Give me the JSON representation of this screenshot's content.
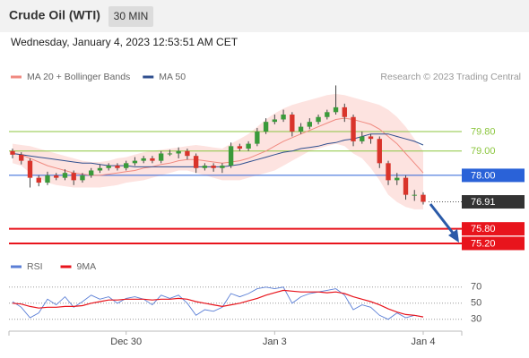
{
  "header": {
    "title": "Crude Oil (WTI)",
    "timeframe": "30 MIN",
    "date": "Wednesday, January 4, 2023 12:53:51 AM CET"
  },
  "chart_data": [
    {
      "type": "candlestick",
      "source": "Research © 2023 Trading Central",
      "categories": [
        null,
        null,
        null,
        null,
        null,
        null,
        null,
        null,
        null,
        null,
        null,
        null,
        null,
        "Dec 30",
        null,
        null,
        null,
        null,
        null,
        null,
        null,
        null,
        null,
        null,
        null,
        null,
        null,
        null,
        null,
        null,
        "Jan 3",
        null,
        null,
        null,
        null,
        null,
        null,
        null,
        null,
        null,
        null,
        null,
        null,
        null,
        null,
        null,
        null,
        "Jan 4"
      ],
      "open": [
        79.0,
        78.85,
        78.6,
        77.9,
        77.7,
        78.0,
        77.9,
        78.1,
        77.8,
        78.0,
        78.2,
        78.3,
        78.4,
        78.3,
        78.5,
        78.6,
        78.7,
        78.6,
        78.9,
        78.9,
        79.0,
        78.8,
        78.3,
        78.4,
        78.3,
        78.4,
        79.2,
        79.1,
        79.3,
        79.8,
        80.2,
        80.3,
        80.5,
        79.8,
        80.0,
        80.2,
        80.4,
        80.6,
        80.8,
        80.4,
        79.4,
        79.6,
        79.5,
        78.5,
        77.8,
        77.9,
        77.2,
        77.2
      ],
      "high": [
        79.1,
        78.95,
        78.7,
        78.0,
        78.15,
        78.1,
        78.25,
        78.2,
        78.1,
        78.3,
        78.45,
        78.5,
        78.5,
        78.6,
        78.75,
        78.8,
        78.8,
        79.0,
        79.05,
        79.15,
        79.1,
        78.9,
        78.5,
        78.5,
        78.5,
        79.35,
        79.3,
        79.4,
        79.95,
        80.35,
        80.5,
        80.7,
        80.6,
        80.15,
        80.35,
        80.5,
        80.7,
        81.7,
        80.95,
        80.5,
        79.8,
        79.7,
        79.6,
        78.6,
        78.1,
        78.0,
        77.4,
        77.3
      ],
      "low": [
        78.7,
        78.45,
        77.5,
        77.55,
        77.6,
        77.8,
        77.8,
        77.6,
        77.7,
        77.9,
        78.1,
        78.2,
        78.2,
        78.2,
        78.4,
        78.5,
        78.5,
        78.5,
        78.8,
        78.7,
        78.65,
        78.1,
        78.2,
        78.15,
        78.1,
        78.3,
        79.0,
        79.0,
        79.2,
        79.7,
        80.1,
        80.2,
        79.6,
        79.7,
        79.9,
        80.1,
        80.3,
        80.5,
        80.2,
        79.2,
        79.3,
        79.3,
        78.3,
        77.6,
        77.6,
        77.0,
        76.95,
        76.8
      ],
      "close": [
        78.85,
        78.6,
        77.9,
        77.7,
        78.0,
        77.9,
        78.1,
        77.8,
        78.0,
        78.2,
        78.3,
        78.4,
        78.3,
        78.5,
        78.6,
        78.7,
        78.6,
        78.9,
        78.9,
        79.0,
        78.8,
        78.3,
        78.4,
        78.3,
        78.4,
        79.2,
        79.1,
        79.3,
        79.8,
        80.2,
        80.3,
        80.5,
        79.8,
        80.0,
        80.2,
        80.4,
        80.6,
        80.8,
        80.4,
        79.4,
        79.6,
        79.5,
        78.5,
        77.8,
        77.9,
        77.2,
        77.2,
        76.91
      ],
      "up_color": "#3a9a3a",
      "down_color": "#d9342b",
      "series": [
        {
          "name": "MA 20 + Bollinger Bands",
          "color": "#f08a80",
          "band_color": "#fde3e0",
          "values": [
            78.9,
            78.85,
            78.7,
            78.55,
            78.4,
            78.3,
            78.2,
            78.1,
            78.05,
            78.0,
            78.0,
            78.05,
            78.1,
            78.15,
            78.2,
            78.3,
            78.35,
            78.45,
            78.5,
            78.6,
            78.65,
            78.65,
            78.6,
            78.55,
            78.5,
            78.55,
            78.6,
            78.7,
            78.85,
            79.0,
            79.2,
            79.4,
            79.55,
            79.7,
            79.85,
            80.0,
            80.15,
            80.3,
            80.35,
            80.3,
            80.2,
            80.1,
            79.9,
            79.6,
            79.3,
            78.9,
            78.5,
            78.1
          ],
          "upper": [
            79.3,
            79.25,
            79.2,
            79.1,
            79.0,
            78.9,
            78.8,
            78.7,
            78.6,
            78.55,
            78.55,
            78.6,
            78.7,
            78.75,
            78.85,
            78.95,
            79.0,
            79.05,
            79.1,
            79.15,
            79.2,
            79.25,
            79.2,
            79.15,
            79.1,
            79.3,
            79.5,
            79.7,
            80.0,
            80.3,
            80.55,
            80.75,
            80.9,
            81.0,
            81.1,
            81.2,
            81.3,
            81.35,
            81.3,
            81.2,
            81.1,
            81.0,
            80.9,
            80.7,
            80.4,
            80.0,
            79.5,
            79.0
          ],
          "lower": [
            78.5,
            78.4,
            78.1,
            77.9,
            77.7,
            77.6,
            77.55,
            77.5,
            77.5,
            77.5,
            77.5,
            77.55,
            77.6,
            77.7,
            77.75,
            77.8,
            77.9,
            78.0,
            78.1,
            78.2,
            78.2,
            78.1,
            78.0,
            77.9,
            77.8,
            77.8,
            77.8,
            77.9,
            78.0,
            78.1,
            78.2,
            78.4,
            78.6,
            78.8,
            79.0,
            79.1,
            79.2,
            79.3,
            79.2,
            78.9,
            78.7,
            78.3,
            77.8,
            77.2,
            76.9,
            76.7,
            76.6,
            76.6
          ]
        },
        {
          "name": "MA 50",
          "color": "#2f4f8f",
          "values": [
            78.9,
            78.85,
            78.8,
            78.75,
            78.7,
            78.65,
            78.6,
            78.55,
            78.5,
            78.5,
            78.45,
            78.4,
            78.4,
            78.4,
            78.35,
            78.35,
            78.35,
            78.35,
            78.35,
            78.35,
            78.35,
            78.35,
            78.35,
            78.35,
            78.35,
            78.4,
            78.45,
            78.55,
            78.65,
            78.75,
            78.85,
            78.95,
            79.0,
            79.1,
            79.15,
            79.2,
            79.3,
            79.35,
            79.45,
            79.5,
            79.6,
            79.7,
            79.7,
            79.7,
            79.6,
            79.5,
            79.4,
            79.25
          ]
        }
      ],
      "levels": [
        {
          "value": 79.8,
          "label": "79.80",
          "color": "#8cc63f",
          "boxed": false,
          "dotted": false
        },
        {
          "value": 79.0,
          "label": "79.00",
          "color": "#8cc63f",
          "boxed": false,
          "dotted": false
        },
        {
          "value": 78.0,
          "label": "78.00",
          "color": "#2a62d8",
          "boxed": true,
          "dotted": false
        },
        {
          "value": 76.91,
          "label": "76.91",
          "color": "#333333",
          "boxed": true,
          "dotted": true
        },
        {
          "value": 75.8,
          "label": "75.80",
          "color": "#e8141c",
          "boxed": true,
          "dotted": false
        },
        {
          "value": 75.2,
          "label": "75.20",
          "color": "#e8141c",
          "boxed": true,
          "dotted": false
        }
      ],
      "ylim": [
        74.72,
        81.9
      ]
    },
    {
      "type": "line",
      "series": [
        {
          "name": "RSI",
          "color": "#5b7fd6",
          "values": [
            52,
            45,
            32,
            38,
            55,
            48,
            58,
            45,
            52,
            60,
            55,
            58,
            50,
            56,
            58,
            55,
            48,
            60,
            56,
            60,
            50,
            35,
            42,
            40,
            45,
            62,
            58,
            62,
            68,
            70,
            68,
            70,
            50,
            58,
            62,
            64,
            66,
            68,
            60,
            42,
            48,
            45,
            35,
            30,
            38,
            32,
            35,
            33
          ]
        },
        {
          "name": "9MA",
          "color": "#e8141c",
          "values": [
            50,
            49,
            46,
            44,
            45,
            45,
            46,
            46,
            47,
            50,
            52,
            54,
            54,
            55,
            55,
            55,
            54,
            55,
            55,
            56,
            55,
            52,
            50,
            48,
            46,
            48,
            50,
            53,
            56,
            60,
            63,
            66,
            65,
            64,
            64,
            64,
            63,
            64,
            62,
            58,
            55,
            52,
            48,
            43,
            39,
            36,
            35,
            33
          ]
        }
      ],
      "ylim": [
        18,
        82
      ],
      "yticks": [
        70,
        50,
        30
      ],
      "grid": true
    }
  ]
}
